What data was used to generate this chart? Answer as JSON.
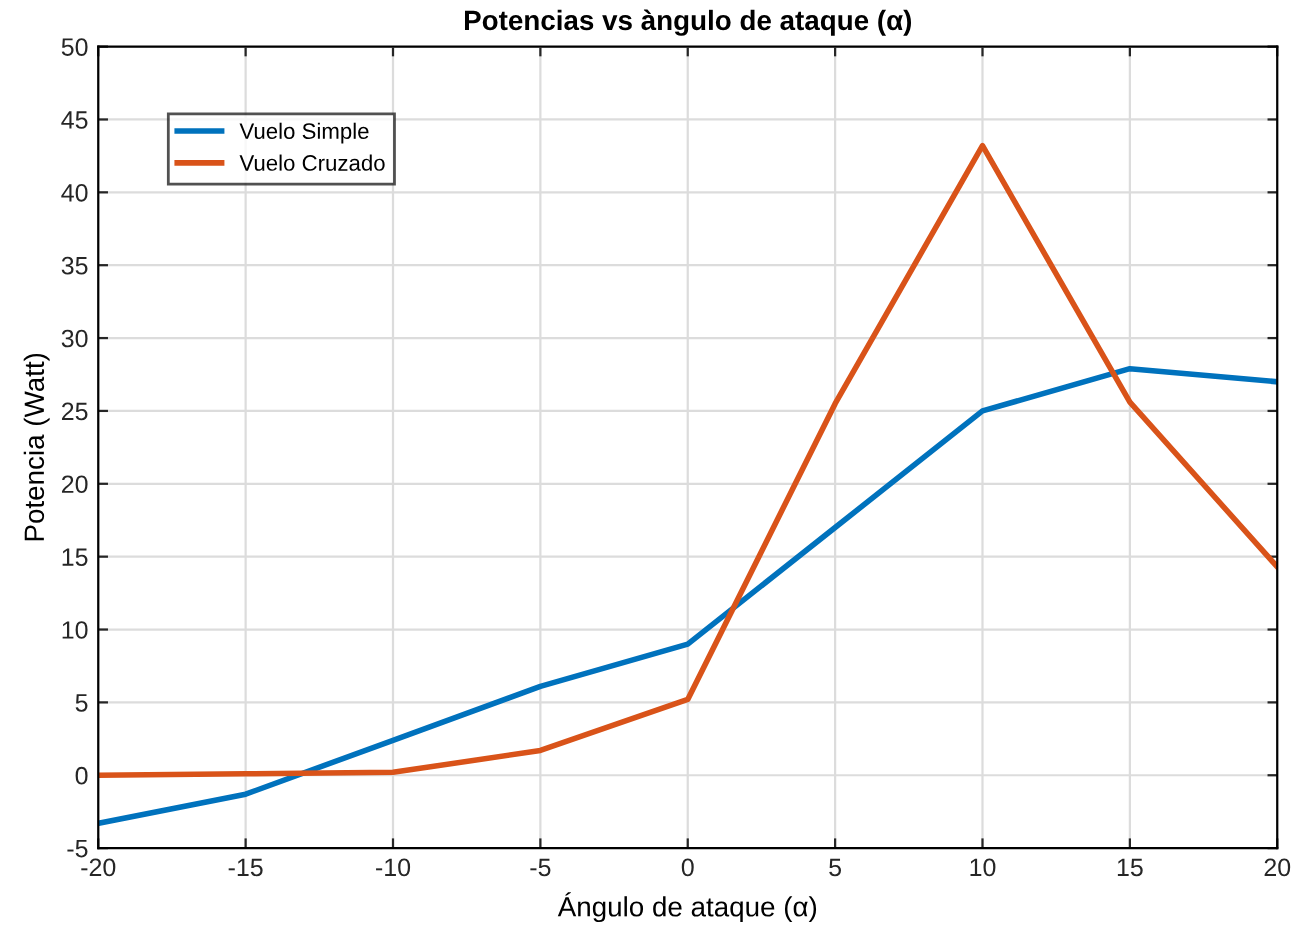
{
  "chart_data": {
    "type": "line",
    "title": "Potencias vs àngulo de ataque (α)",
    "xlabel": "Ángulo de ataque (α)",
    "ylabel": "Potencia (Watt)",
    "x": [
      -20,
      -15,
      -10,
      -5,
      0,
      5,
      10,
      15,
      20
    ],
    "series": [
      {
        "name": "Vuelo Simple",
        "color": "#0072bd",
        "values": [
          -3.3,
          -1.3,
          2.4,
          6.1,
          9.0,
          17.0,
          25.0,
          27.9,
          27.0
        ]
      },
      {
        "name": "Vuelo Cruzado",
        "color": "#d95319",
        "values": [
          0.0,
          0.1,
          0.2,
          1.7,
          5.2,
          25.5,
          43.2,
          25.6,
          14.3
        ]
      }
    ],
    "xlim": [
      -20,
      20
    ],
    "ylim": [
      -5,
      50
    ],
    "xticks": [
      -20,
      -15,
      -10,
      -5,
      0,
      5,
      10,
      15,
      20
    ],
    "yticks": [
      -5,
      0,
      5,
      10,
      15,
      20,
      25,
      30,
      35,
      40,
      45,
      50
    ],
    "grid": true,
    "legend": "top left",
    "line_style": "solid"
  }
}
